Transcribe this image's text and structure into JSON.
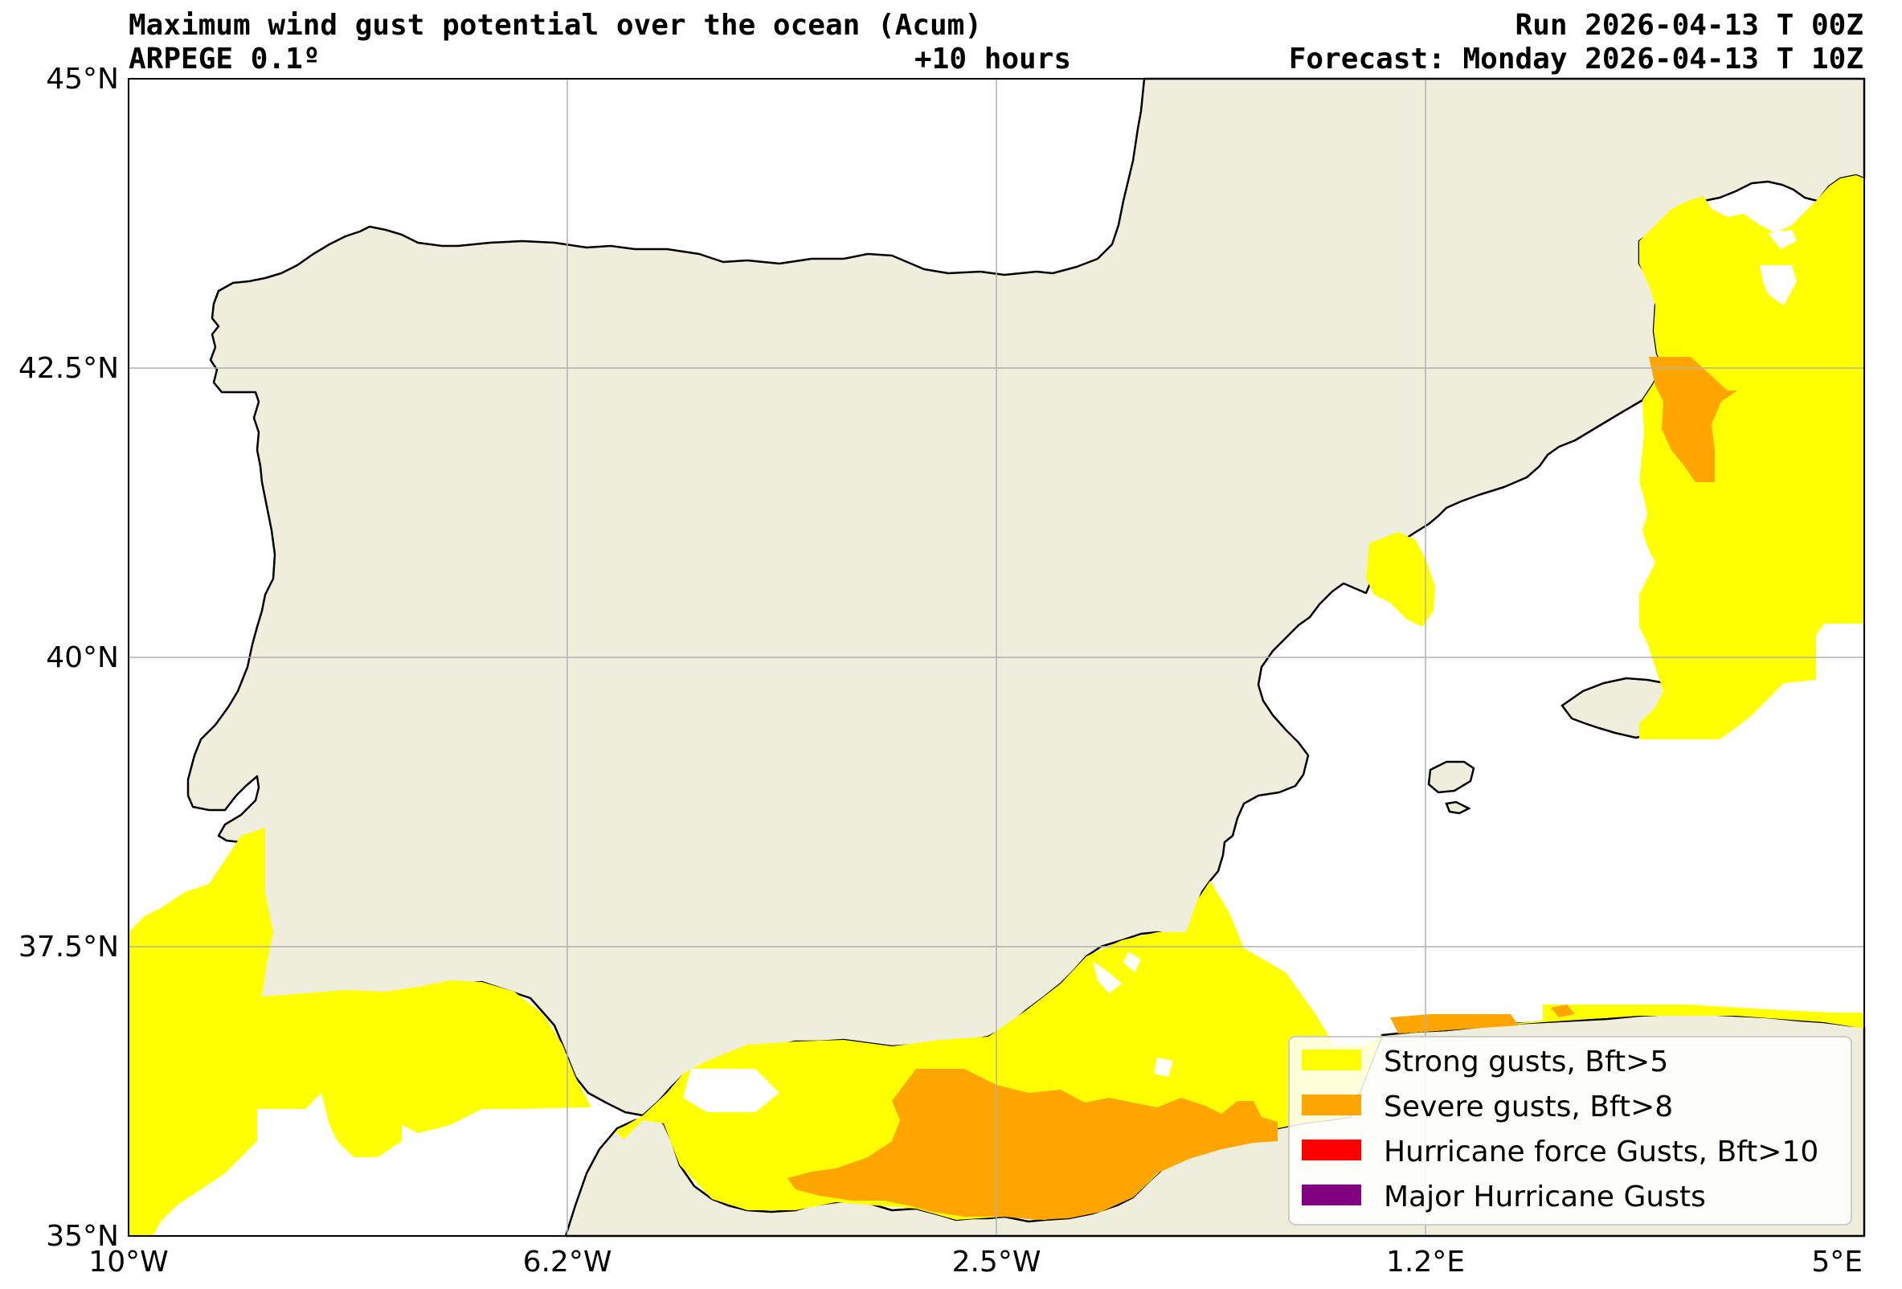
{
  "header": {
    "title": "Maximum wind gust potential over the ocean (Acum)",
    "model": "ARPEGE 0.1º",
    "lead_time": "+10 hours",
    "run": "Run 2026-04-13 T 00Z",
    "forecast": "Forecast: Monday 2026-04-13 T 10Z"
  },
  "map": {
    "extent": {
      "lon": [
        -10,
        5
      ],
      "lat": [
        35,
        45
      ]
    },
    "lat_ticks": [
      {
        "value": 45,
        "label": "45°N"
      },
      {
        "value": 42.5,
        "label": "42.5°N"
      },
      {
        "value": 40,
        "label": "40°N"
      },
      {
        "value": 37.5,
        "label": "37.5°N"
      },
      {
        "value": 35,
        "label": "35°N"
      }
    ],
    "lon_ticks": [
      {
        "value": -10,
        "label": "10°W"
      },
      {
        "value": -6.25,
        "label": "6.2°W"
      },
      {
        "value": -2.5,
        "label": "2.5°W"
      },
      {
        "value": 1.25,
        "label": "1.2°E"
      },
      {
        "value": 5,
        "label": "5°E"
      }
    ],
    "land_color": "#efeddc",
    "ocean_color": "#ffffff",
    "grid_color": "#b0b0b0"
  },
  "legend": {
    "items": [
      {
        "label": "Strong gusts, Bft>5",
        "color": "#ffff00"
      },
      {
        "label": "Severe gusts, Bft>8",
        "color": "#ffa500"
      },
      {
        "label": "Hurricane force Gusts, Bft>10",
        "color": "#ff0000"
      },
      {
        "label": "Major Hurricane Gusts",
        "color": "#800080"
      }
    ]
  }
}
